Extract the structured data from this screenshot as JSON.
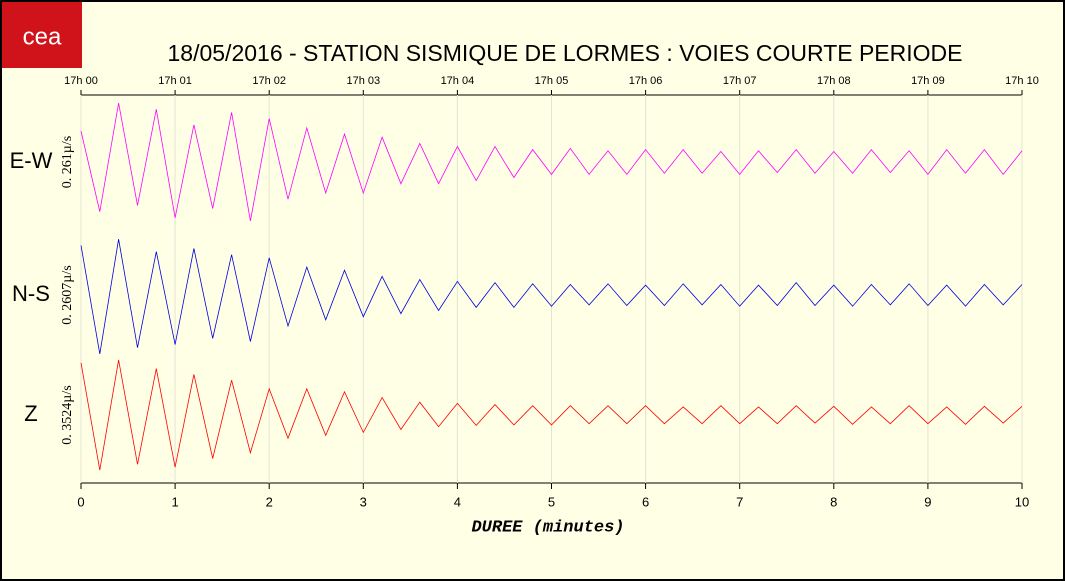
{
  "logo": "cea",
  "chart_data": {
    "type": "line",
    "title": "18/05/2016  -  STATION SISMIQUE DE LORMES : VOIES COURTE PERIODE",
    "xlabel": "DUREE (minutes)",
    "xlim": [
      0,
      10
    ],
    "xticks": [
      0,
      1,
      2,
      3,
      4,
      5,
      6,
      7,
      8,
      9,
      10
    ],
    "top_ticks": [
      {
        "value": 0,
        "label": "17h 00"
      },
      {
        "value": 1,
        "label": "17h 01"
      },
      {
        "value": 2,
        "label": "17h 02"
      },
      {
        "value": 3,
        "label": "17h 03"
      },
      {
        "value": 4,
        "label": "17h 04"
      },
      {
        "value": 5,
        "label": "17h 05"
      },
      {
        "value": 6,
        "label": "17h 06"
      },
      {
        "value": 7,
        "label": "17h 07"
      },
      {
        "value": 8,
        "label": "17h 08"
      },
      {
        "value": 9,
        "label": "17h 09"
      },
      {
        "value": 10,
        "label": "17h 10"
      }
    ],
    "ylim": [
      -1,
      1
    ],
    "grid": true,
    "x": [
      0,
      0.2,
      0.4,
      0.6,
      0.8,
      1,
      1.2,
      1.4,
      1.6,
      1.8,
      2,
      2.2,
      2.4,
      2.6,
      2.8,
      3,
      3.2,
      3.4,
      3.6,
      3.8,
      4,
      4.2,
      4.4,
      4.6,
      4.8,
      5,
      5.2,
      5.4,
      5.6,
      5.8,
      6,
      6.2,
      6.4,
      6.6,
      6.8,
      7,
      7.2,
      7.4,
      7.6,
      7.8,
      8,
      8.2,
      8.4,
      8.6,
      8.8,
      9,
      9.2,
      9.4,
      9.6,
      9.8,
      10
    ],
    "series": [
      {
        "name": "E-W",
        "scale_label": "0. 261µ/s",
        "color": "#ff00ff",
        "values": [
          0.5,
          -0.8,
          0.95,
          -0.7,
          0.85,
          -0.9,
          0.6,
          -0.75,
          0.8,
          -0.95,
          0.7,
          -0.6,
          0.55,
          -0.5,
          0.45,
          -0.5,
          0.4,
          -0.35,
          0.3,
          -0.35,
          0.25,
          -0.3,
          0.25,
          -0.25,
          0.2,
          -0.2,
          0.22,
          -0.2,
          0.18,
          -0.2,
          0.2,
          -0.18,
          0.2,
          -0.18,
          0.17,
          -0.2,
          0.18,
          -0.17,
          0.2,
          -0.18,
          0.17,
          -0.18,
          0.2,
          -0.17,
          0.18,
          -0.2,
          0.2,
          -0.18,
          0.2,
          -0.2,
          0.18
        ]
      },
      {
        "name": "N-S",
        "scale_label": "0. 2607µ/s",
        "color": "#0000e0",
        "values": [
          0.8,
          -0.95,
          0.9,
          -0.85,
          0.7,
          -0.8,
          0.75,
          -0.7,
          0.65,
          -0.75,
          0.6,
          -0.5,
          0.45,
          -0.4,
          0.4,
          -0.35,
          0.3,
          -0.3,
          0.25,
          -0.25,
          0.22,
          -0.2,
          0.2,
          -0.2,
          0.18,
          -0.18,
          0.17,
          -0.16,
          0.18,
          -0.17,
          0.16,
          -0.17,
          0.18,
          -0.16,
          0.17,
          -0.18,
          0.16,
          -0.17,
          0.2,
          -0.17,
          0.16,
          -0.18,
          0.17,
          -0.16,
          0.18,
          -0.17,
          0.16,
          -0.18,
          0.17,
          -0.16,
          0.17
        ]
      },
      {
        "name": "Z",
        "scale_label": "0. 3524µ/s",
        "color": "#ff0000",
        "values": [
          0.9,
          -0.95,
          0.95,
          -0.85,
          0.8,
          -0.9,
          0.7,
          -0.75,
          0.6,
          -0.65,
          0.45,
          -0.4,
          0.45,
          -0.35,
          0.4,
          -0.3,
          0.3,
          -0.25,
          0.22,
          -0.2,
          0.2,
          -0.18,
          0.18,
          -0.17,
          0.16,
          -0.17,
          0.16,
          -0.15,
          0.16,
          -0.15,
          0.16,
          -0.15,
          0.14,
          -0.15,
          0.16,
          -0.15,
          0.14,
          -0.15,
          0.16,
          -0.14,
          0.15,
          -0.16,
          0.14,
          -0.15,
          0.16,
          -0.15,
          0.14,
          -0.16,
          0.15,
          -0.14,
          0.15
        ]
      }
    ]
  }
}
